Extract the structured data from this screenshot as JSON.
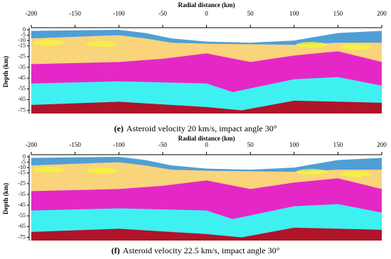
{
  "panels": [
    {
      "x_label": "Radial distance (km)",
      "y_label": "Depth (km)",
      "xlim": [
        -200,
        200
      ],
      "xticks": [
        -200,
        -150,
        -100,
        -50,
        0,
        50,
        100,
        150,
        200
      ],
      "ylim": [
        0,
        -78
      ],
      "yticks": [
        0,
        -5,
        -10,
        -15,
        -25,
        -35,
        -45,
        -55,
        -65,
        -75
      ],
      "caption_tag": "(e)",
      "caption": "Asteroid velocity 20 km/s, impact angle 30°"
    },
    {
      "x_label": "Radial distance (km)",
      "y_label": "Depth (km)",
      "xlim": [
        -200,
        200
      ],
      "xticks": [
        -200,
        -150,
        -100,
        -50,
        0,
        50,
        100,
        150,
        200
      ],
      "ylim": [
        0,
        -78
      ],
      "yticks": [
        0,
        -5,
        -10,
        -15,
        -25,
        -35,
        -45,
        -55,
        -65,
        -75
      ],
      "caption_tag": "(f)",
      "caption": "Asteroid velocity 22.5 km/s, impact angle 30°"
    }
  ]
}
